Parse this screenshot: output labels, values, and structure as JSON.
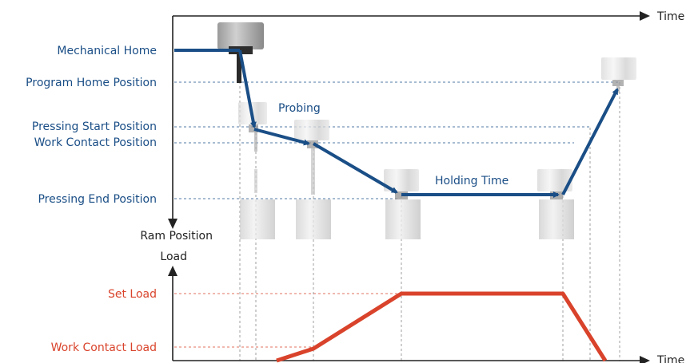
{
  "axes": {
    "time_top": "Time",
    "time_bottom": "Time",
    "ram_position": "Ram Position",
    "load": "Load"
  },
  "position_levels": {
    "mechanical_home": "Mechanical Home",
    "program_home": "Program Home Position",
    "pressing_start": "Pressing Start Position",
    "work_contact": "Work Contact Position",
    "pressing_end": "Pressing End Position"
  },
  "phases": {
    "probing": "Probing",
    "holding_time": "Holding Time"
  },
  "load_levels": {
    "set_load": "Set Load",
    "work_contact_load": "Work Contact Load"
  },
  "colors": {
    "position_curve": "#1a4e86",
    "load_curve": "#d9432b",
    "guide_lines": "#888888"
  }
}
